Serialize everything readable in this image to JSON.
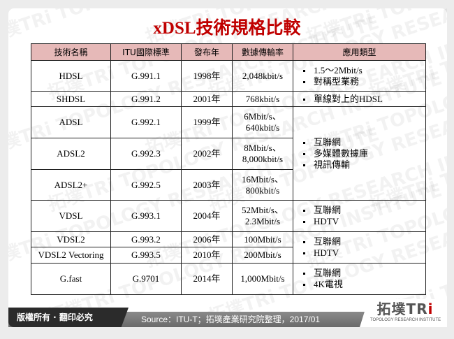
{
  "title": "xDSL技術規格比較",
  "watermark": "拓墣TRi TOPOLOGY RESEARCH INSTITUTE",
  "table": {
    "headers": [
      "技術名稱",
      "ITU國際標準",
      "發布年",
      "數據傳輸率",
      "應用類型"
    ],
    "rows": [
      {
        "name": "HDSL",
        "itu": "G.991.1",
        "year": "1998年",
        "rate": "2,048kbit/s"
      },
      {
        "name": "SHDSL",
        "itu": "G.991.2",
        "year": "2001年",
        "rate": "768kbit/s"
      },
      {
        "name": "ADSL",
        "itu": "G.992.1",
        "year": "1999年",
        "rate": "6Mbit/s、640kbit/s"
      },
      {
        "name": "ADSL2",
        "itu": "G.992.3",
        "year": "2002年",
        "rate": "8Mbit/s、8,000kbit/s"
      },
      {
        "name": "ADSL2+",
        "itu": "G.992.5",
        "year": "2003年",
        "rate": "16Mbit/s、800kbit/s"
      },
      {
        "name": "VDSL",
        "itu": "G.993.1",
        "year": "2004年",
        "rate": "52Mbit/s、2.3Mbit/s"
      },
      {
        "name": "VDSL2",
        "itu": "G.993.2",
        "year": "2006年",
        "rate": "100Mbit/s"
      },
      {
        "name": "VDSL2  Vectoring",
        "itu": "G.993.5",
        "year": "2010年",
        "rate": "200Mbit/s"
      },
      {
        "name": "G.fast",
        "itu": "G.9701",
        "year": "2014年",
        "rate": "1,000Mbit/s"
      }
    ],
    "applications": [
      [
        "1.5～2Mbit/s",
        "對稱型業務"
      ],
      [
        "單線對上的HDSL"
      ],
      [
        "互聯網",
        "多媒體數據庫",
        "視訊傳輸"
      ],
      [
        "互聯網",
        "HDTV"
      ],
      [
        "互聯網",
        "HDTV"
      ],
      [
        "互聯網",
        "4K電視"
      ]
    ]
  },
  "footer": {
    "copyright": "版權所有 · 翻印必究",
    "source": "Source：ITU-T；拓墣產業研究院整理，2017/01",
    "logo": "拓墣TRi",
    "logo_sub": "TOPOLOGY RESEARCH INSTITUTE"
  },
  "colors": {
    "title": "#c00000",
    "header_bg": "#e6b9b8",
    "footer_dark": "#2b2b2b",
    "footer_band": "#7a7a7a"
  }
}
